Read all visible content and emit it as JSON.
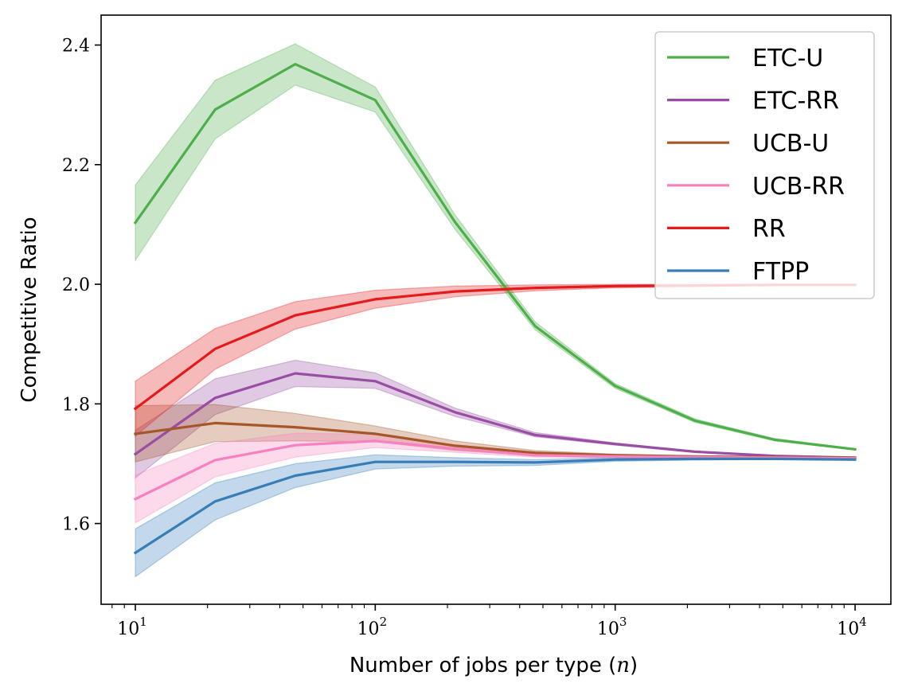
{
  "chart_data": {
    "type": "line",
    "xlabel": "Number of jobs per type ",
    "xlabel_var": "n",
    "ylabel": "Competitive Ratio",
    "xscale": "log",
    "xlim": [
      7.2,
      14100
    ],
    "ylim": [
      1.465,
      2.45
    ],
    "xticks": [
      {
        "value": 10,
        "base": "10",
        "exp": "1"
      },
      {
        "value": 100,
        "base": "10",
        "exp": "2"
      },
      {
        "value": 1000,
        "base": "10",
        "exp": "3"
      },
      {
        "value": 10000,
        "base": "10",
        "exp": "4"
      }
    ],
    "yticks": [
      {
        "value": 1.6,
        "label": "1.6"
      },
      {
        "value": 1.8,
        "label": "1.8"
      },
      {
        "value": 2.0,
        "label": "2.0"
      },
      {
        "value": 2.2,
        "label": "2.2"
      },
      {
        "value": 2.4,
        "label": "2.4"
      }
    ],
    "legend_position": "top-right",
    "x": [
      10,
      21.5,
      46.4,
      100,
      215,
      464,
      1000,
      2150,
      4640,
      10000
    ],
    "series": [
      {
        "name": "ETC-U",
        "color": "#4daf4a",
        "values": [
          2.103,
          2.292,
          2.368,
          2.308,
          2.104,
          1.93,
          1.83,
          1.772,
          1.74,
          1.724
        ],
        "lower": [
          2.04,
          2.243,
          2.333,
          2.288,
          2.092,
          1.924,
          1.826,
          1.769,
          1.738,
          1.723
        ],
        "upper": [
          2.166,
          2.341,
          2.402,
          2.33,
          2.116,
          1.937,
          1.834,
          1.775,
          1.742,
          1.725
        ]
      },
      {
        "name": "ETC-RR",
        "color": "#984ea3",
        "values": [
          1.716,
          1.81,
          1.851,
          1.838,
          1.786,
          1.748,
          1.733,
          1.72,
          1.713,
          1.71
        ],
        "lower": [
          1.676,
          1.782,
          1.829,
          1.826,
          1.779,
          1.745,
          1.731,
          1.719,
          1.712,
          1.709
        ],
        "upper": [
          1.756,
          1.842,
          1.873,
          1.852,
          1.793,
          1.752,
          1.735,
          1.721,
          1.714,
          1.711
        ]
      },
      {
        "name": "UCB-U",
        "color": "#a65628",
        "values": [
          1.75,
          1.768,
          1.761,
          1.75,
          1.73,
          1.718,
          1.714,
          1.712,
          1.711,
          1.71
        ],
        "lower": [
          1.703,
          1.737,
          1.738,
          1.737,
          1.722,
          1.714,
          1.712,
          1.711,
          1.71,
          1.709
        ],
        "upper": [
          1.797,
          1.799,
          1.784,
          1.763,
          1.738,
          1.722,
          1.716,
          1.713,
          1.712,
          1.711
        ]
      },
      {
        "name": "UCB-RR",
        "color": "#f781bf",
        "values": [
          1.641,
          1.706,
          1.731,
          1.738,
          1.725,
          1.714,
          1.712,
          1.711,
          1.71,
          1.709
        ],
        "lower": [
          1.601,
          1.678,
          1.711,
          1.727,
          1.719,
          1.711,
          1.71,
          1.71,
          1.709,
          1.708
        ],
        "upper": [
          1.681,
          1.734,
          1.751,
          1.749,
          1.731,
          1.717,
          1.714,
          1.712,
          1.711,
          1.71
        ]
      },
      {
        "name": "RR",
        "color": "#e41a1c",
        "values": [
          1.792,
          1.892,
          1.948,
          1.975,
          1.988,
          1.994,
          1.997,
          1.998,
          1.999,
          1.999
        ],
        "lower": [
          1.746,
          1.858,
          1.925,
          1.96,
          1.979,
          1.989,
          1.994,
          1.996,
          1.998,
          1.998
        ],
        "upper": [
          1.838,
          1.926,
          1.971,
          1.99,
          1.997,
          1.999,
          2.0,
          2.0,
          2.0,
          2.0
        ]
      },
      {
        "name": "FTPP",
        "color": "#377eb8",
        "values": [
          1.551,
          1.637,
          1.68,
          1.703,
          1.703,
          1.702,
          1.707,
          1.708,
          1.708,
          1.707
        ],
        "lower": [
          1.511,
          1.606,
          1.66,
          1.691,
          1.696,
          1.697,
          1.704,
          1.706,
          1.707,
          1.706
        ],
        "upper": [
          1.591,
          1.668,
          1.7,
          1.715,
          1.71,
          1.707,
          1.71,
          1.71,
          1.709,
          1.708
        ]
      }
    ]
  }
}
